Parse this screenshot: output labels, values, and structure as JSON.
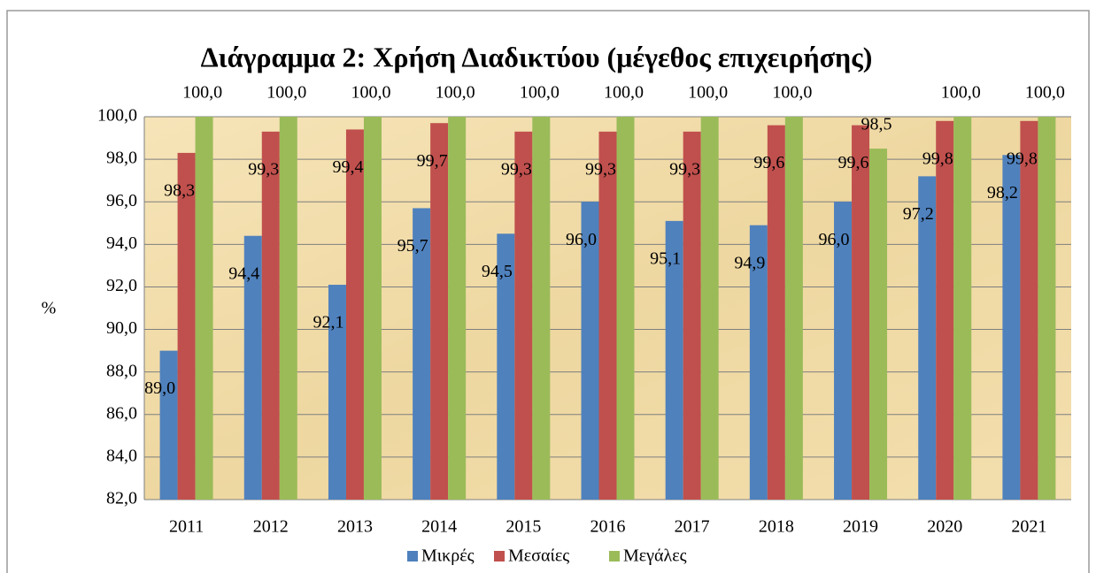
{
  "chart_data": {
    "type": "bar",
    "title": "Διάγραμμα 2: Χρήση Διαδικτύου (μέγεθος επιχειρήσης)",
    "y_label": "%",
    "categories": [
      "2011",
      "2012",
      "2013",
      "2014",
      "2015",
      "2016",
      "2017",
      "2018",
      "2019",
      "2020",
      "2021"
    ],
    "series": [
      {
        "name": "Μικρές",
        "color": "#4f81bd",
        "values": [
          89.0,
          94.4,
          92.1,
          95.7,
          94.5,
          96.0,
          95.1,
          94.9,
          96.0,
          97.2,
          98.2
        ],
        "value_labels": [
          "89,0",
          "94,4",
          "92,1",
          "95,7",
          "94,5",
          "96,0",
          "95,1",
          "94,9",
          "96,0",
          "97,2",
          "98,2"
        ]
      },
      {
        "name": "Μεσαίες",
        "color": "#c0504d",
        "values": [
          98.3,
          99.3,
          99.4,
          99.7,
          99.3,
          99.3,
          99.3,
          99.6,
          99.6,
          99.8,
          99.8
        ],
        "value_labels": [
          "98,3",
          "99,3",
          "99,4",
          "99,7",
          "99,3",
          "99,3",
          "99,3",
          "99,6",
          "99,6",
          "99,8",
          "99,8"
        ]
      },
      {
        "name": "Μεγάλες",
        "color": "#9bbb59",
        "values": [
          100,
          100,
          100,
          100,
          100,
          100,
          100,
          100,
          98.5,
          100,
          100
        ],
        "value_labels": [
          "100,0",
          "100,0",
          "100,0",
          "100,0",
          "100,0",
          "100,0",
          "100,0",
          "100,0",
          "98,5",
          "100,0",
          "100,0"
        ]
      }
    ],
    "ylim": [
      82,
      100
    ],
    "yticks": [
      {
        "value": 82,
        "label": "82,0"
      },
      {
        "value": 84,
        "label": "84,0"
      },
      {
        "value": 86,
        "label": "86,0"
      },
      {
        "value": 88,
        "label": "88,0"
      },
      {
        "value": 90,
        "label": "90,0"
      },
      {
        "value": 92,
        "label": "92,0"
      },
      {
        "value": 94,
        "label": "94,0"
      },
      {
        "value": 96,
        "label": "96,0"
      },
      {
        "value": 98,
        "label": "98,0"
      },
      {
        "value": 100,
        "label": "100,0"
      }
    ],
    "grid": true,
    "legend": "bottom"
  }
}
